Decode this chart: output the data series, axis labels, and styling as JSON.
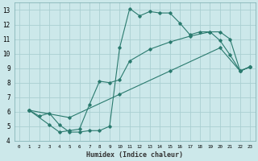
{
  "xlabel": "Humidex (Indice chaleur)",
  "bg_color": "#cce8ea",
  "grid_color": "#aacfd2",
  "line_color": "#2a7a6e",
  "xlim": [
    -0.5,
    23.5
  ],
  "ylim": [
    4,
    13.5
  ],
  "xticks": [
    0,
    1,
    2,
    3,
    4,
    5,
    6,
    7,
    8,
    9,
    10,
    11,
    12,
    13,
    14,
    15,
    16,
    17,
    18,
    19,
    20,
    21,
    22,
    23
  ],
  "yticks": [
    4,
    5,
    6,
    7,
    8,
    9,
    10,
    11,
    12,
    13
  ],
  "line1_x": [
    1,
    2,
    3,
    4,
    5,
    6,
    7,
    8,
    9,
    10,
    11,
    12,
    13,
    14,
    15,
    16,
    17,
    18,
    19,
    20,
    21,
    22,
    23
  ],
  "line1_y": [
    6.1,
    5.7,
    5.9,
    5.1,
    4.6,
    4.6,
    4.7,
    4.7,
    5.0,
    10.4,
    13.1,
    12.6,
    12.9,
    12.8,
    12.8,
    12.1,
    11.3,
    11.5,
    11.5,
    10.9,
    9.9,
    8.8,
    9.1
  ],
  "line2_x": [
    1,
    3,
    4,
    5,
    6,
    7,
    8,
    9,
    10,
    11,
    13,
    15,
    17,
    19,
    20,
    21,
    22,
    23
  ],
  "line2_y": [
    6.1,
    5.1,
    4.6,
    4.7,
    4.8,
    6.5,
    8.1,
    8.0,
    8.2,
    9.5,
    10.3,
    10.8,
    11.2,
    11.5,
    11.5,
    11.0,
    8.8,
    9.1
  ],
  "line3_x": [
    1,
    5,
    10,
    15,
    20,
    22,
    23
  ],
  "line3_y": [
    6.1,
    5.6,
    7.2,
    8.8,
    10.4,
    8.8,
    9.1
  ]
}
